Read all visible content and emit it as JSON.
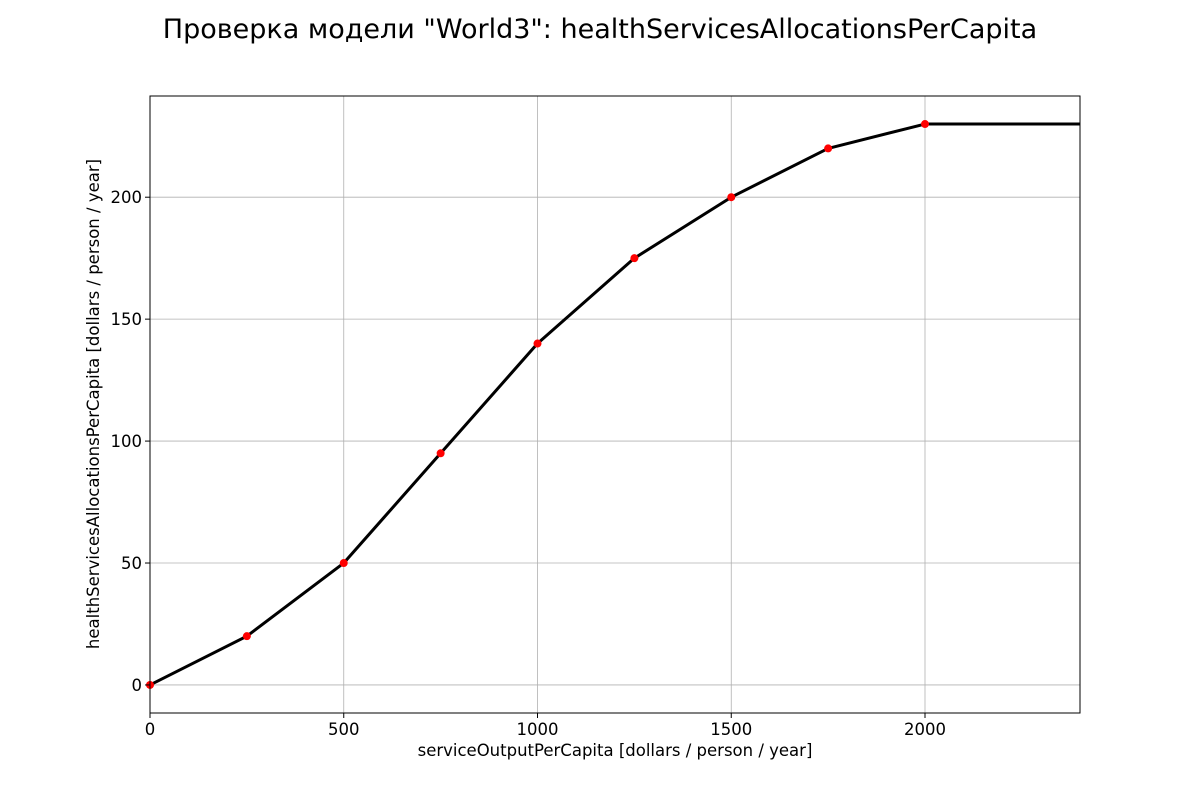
{
  "chart_data": {
    "type": "line",
    "title": "Проверка модели \"World3\": healthServicesAllocationsPerCapita",
    "xlabel": "serviceOutputPerCapita [dollars / person / year]",
    "ylabel": "healthServicesAllocationsPerCapita [dollars / person / year]",
    "xlim": [
      0,
      2400
    ],
    "ylim": [
      -11.5,
      241.5
    ],
    "xticks": [
      0,
      500,
      1000,
      1500,
      2000
    ],
    "yticks": [
      0,
      50,
      100,
      150,
      200
    ],
    "grid": true,
    "legend": "none",
    "series": [
      {
        "kind": "line",
        "color": "#000000",
        "x": [
          0,
          250,
          500,
          750,
          1000,
          1250,
          1500,
          1750,
          2000,
          2400
        ],
        "y": [
          0,
          20,
          50,
          95,
          140,
          175,
          200,
          220,
          230,
          230
        ]
      },
      {
        "kind": "markers",
        "color": "#ff0000",
        "x": [
          0,
          250,
          500,
          750,
          1000,
          1250,
          1500,
          1750,
          2000
        ],
        "y": [
          0,
          20,
          50,
          95,
          140,
          175,
          200,
          220,
          230
        ]
      }
    ]
  }
}
